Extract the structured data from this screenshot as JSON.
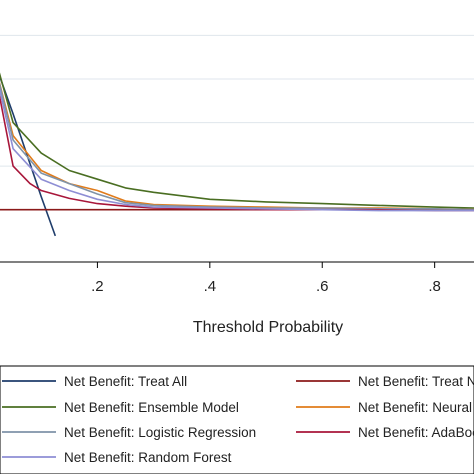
{
  "chart_data": {
    "type": "line",
    "xlabel": "Threshold Probability",
    "ylabel": "",
    "title": "",
    "xlim": [
      0,
      0.87
    ],
    "ylim": [
      -0.06,
      0.22
    ],
    "xticks": [
      0.2,
      0.4,
      0.6,
      0.8
    ],
    "xtick_labels": [
      ".2",
      ".4",
      ".6",
      ".8"
    ],
    "grid": "horizontal",
    "legend_position": "bottom",
    "series": [
      {
        "name": "Net Benefit: Treat All",
        "color": "#1f3d6b",
        "x": [
          0.0,
          0.05,
          0.1,
          0.125
        ],
        "y": [
          0.2,
          0.11,
          0.015,
          -0.03
        ]
      },
      {
        "name": "Net Benefit: Treat None",
        "color": "#8b1a1a",
        "x": [
          0.0,
          0.87
        ],
        "y": [
          0.0,
          0.0
        ]
      },
      {
        "name": "Net Benefit: Ensemble Model",
        "color": "#4a6e22",
        "x": [
          0.0,
          0.02,
          0.05,
          0.1,
          0.15,
          0.2,
          0.25,
          0.3,
          0.4,
          0.5,
          0.6,
          0.7,
          0.8,
          0.87
        ],
        "y": [
          0.2,
          0.17,
          0.1,
          0.065,
          0.045,
          0.035,
          0.025,
          0.02,
          0.012,
          0.009,
          0.007,
          0.005,
          0.003,
          0.002
        ]
      },
      {
        "name": "Net Benefit: Neural Network",
        "color": "#e07b1a",
        "x": [
          0.0,
          0.02,
          0.05,
          0.1,
          0.15,
          0.2,
          0.25,
          0.3,
          0.4,
          0.5,
          0.6,
          0.7,
          0.8,
          0.87
        ],
        "y": [
          0.2,
          0.16,
          0.085,
          0.045,
          0.03,
          0.022,
          0.01,
          0.006,
          0.004,
          0.003,
          0.002,
          0.002,
          0.001,
          0.0
        ]
      },
      {
        "name": "Net Benefit: Logistic Regression",
        "color": "#7f93a8",
        "x": [
          0.0,
          0.02,
          0.05,
          0.1,
          0.15,
          0.2,
          0.25,
          0.3,
          0.4,
          0.5,
          0.6,
          0.7,
          0.8,
          0.87
        ],
        "y": [
          0.2,
          0.16,
          0.08,
          0.042,
          0.03,
          0.018,
          0.008,
          0.005,
          0.003,
          0.002,
          0.002,
          0.001,
          0.001,
          0.0
        ]
      },
      {
        "name": "Net Benefit: AdaBoost",
        "color": "#a8163a",
        "x": [
          0.0,
          0.02,
          0.05,
          0.08,
          0.1,
          0.15,
          0.2,
          0.25,
          0.3,
          0.4,
          0.5,
          0.6,
          0.7,
          0.8,
          0.87
        ],
        "y": [
          0.2,
          0.15,
          0.05,
          0.03,
          0.022,
          0.013,
          0.007,
          0.004,
          0.002,
          0.001,
          0.0,
          0.0,
          0.0,
          -0.001,
          -0.001
        ]
      },
      {
        "name": "Net Benefit: Random Forest",
        "color": "#8e8ed4",
        "x": [
          0.0,
          0.02,
          0.05,
          0.1,
          0.15,
          0.2,
          0.25,
          0.3,
          0.4,
          0.5,
          0.6,
          0.7,
          0.8,
          0.87
        ],
        "y": [
          0.2,
          0.155,
          0.07,
          0.035,
          0.022,
          0.012,
          0.006,
          0.003,
          0.002,
          0.001,
          0.0,
          -0.001,
          -0.001,
          -0.001
        ]
      }
    ]
  },
  "legend": {
    "items": [
      {
        "label": "Net Benefit: Treat All",
        "color": "#1f3d6b"
      },
      {
        "label": "Net Benefit: Treat None",
        "color": "#8b1a1a"
      },
      {
        "label": "Net Benefit: Ensemble Model",
        "color": "#4a6e22"
      },
      {
        "label": "Net Benefit: Neural Network",
        "color": "#e07b1a"
      },
      {
        "label": "Net Benefit: Logistic Regression",
        "color": "#7f93a8"
      },
      {
        "label": "Net Benefit: AdaBoost",
        "color": "#a8163a"
      },
      {
        "label": "Net Benefit: Random Forest",
        "color": "#8e8ed4"
      }
    ]
  }
}
